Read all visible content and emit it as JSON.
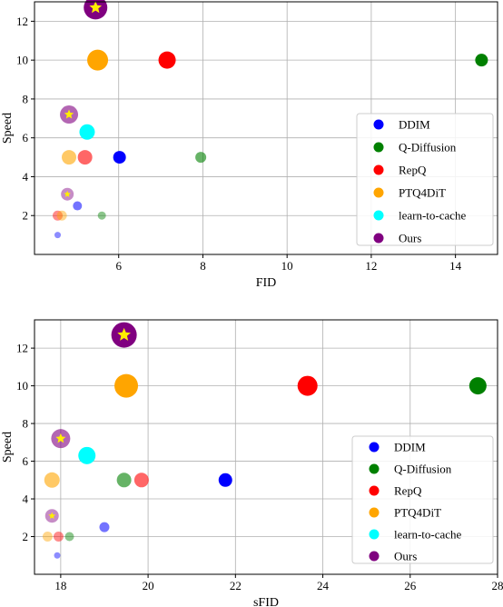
{
  "colors": {
    "DDIM": "#0000ff",
    "Q-Diffusion": "#008000",
    "RepQ": "#ff0000",
    "PTQ4DiT": "#ffa500",
    "learn-to-cache": "#00ffff",
    "Ours": "#800080",
    "star": "#ffee00"
  },
  "chart_data": [
    {
      "type": "scatter",
      "xlabel": "FID",
      "ylabel": "Speed",
      "xlim": [
        4.0,
        15.0
      ],
      "ylim": [
        0.0,
        13.0
      ],
      "xticks": [
        6,
        8,
        10,
        12,
        14
      ],
      "yticks": [
        2,
        4,
        6,
        8,
        10,
        12
      ],
      "grid": true,
      "legend_position": "lower-right",
      "series": [
        {
          "name": "DDIM",
          "points": [
            {
              "x": 6.02,
              "y": 5.0,
              "size": 14,
              "alpha": 1.0
            },
            {
              "x": 5.02,
              "y": 2.5,
              "size": 10,
              "alpha": 0.55
            },
            {
              "x": 4.55,
              "y": 1.0,
              "size": 7,
              "alpha": 0.45
            }
          ]
        },
        {
          "name": "Q-Diffusion",
          "points": [
            {
              "x": 14.62,
              "y": 10.0,
              "size": 14,
              "alpha": 1.0
            },
            {
              "x": 7.95,
              "y": 5.0,
              "size": 12,
              "alpha": 0.6
            },
            {
              "x": 5.6,
              "y": 2.0,
              "size": 9,
              "alpha": 0.45
            }
          ]
        },
        {
          "name": "RepQ",
          "points": [
            {
              "x": 7.15,
              "y": 10.0,
              "size": 19,
              "alpha": 1.0
            },
            {
              "x": 5.2,
              "y": 5.0,
              "size": 16,
              "alpha": 0.6
            },
            {
              "x": 4.55,
              "y": 2.0,
              "size": 11,
              "alpha": 0.45
            }
          ]
        },
        {
          "name": "PTQ4DiT",
          "points": [
            {
              "x": 5.5,
              "y": 10.0,
              "size": 23,
              "alpha": 1.0
            },
            {
              "x": 4.82,
              "y": 5.0,
              "size": 16,
              "alpha": 0.6
            },
            {
              "x": 4.65,
              "y": 2.0,
              "size": 11,
              "alpha": 0.45
            }
          ]
        },
        {
          "name": "learn-to-cache",
          "points": [
            {
              "x": 5.25,
              "y": 6.3,
              "size": 17,
              "alpha": 1.0
            }
          ]
        },
        {
          "name": "Ours",
          "points": [
            {
              "x": 5.45,
              "y": 12.7,
              "size": 26,
              "alpha": 1.0,
              "star": true
            },
            {
              "x": 4.82,
              "y": 7.2,
              "size": 20,
              "alpha": 0.6,
              "star": true
            },
            {
              "x": 4.78,
              "y": 3.1,
              "size": 14,
              "alpha": 0.45,
              "star": true
            }
          ]
        }
      ]
    },
    {
      "type": "scatter",
      "xlabel": "sFID",
      "ylabel": "Speed",
      "xlim": [
        17.4,
        28.0
      ],
      "ylim": [
        0.0,
        13.5
      ],
      "xticks": [
        18,
        20,
        22,
        24,
        26,
        28
      ],
      "yticks": [
        2,
        4,
        6,
        8,
        10,
        12
      ],
      "grid": true,
      "legend_position": "lower-right",
      "series": [
        {
          "name": "DDIM",
          "points": [
            {
              "x": 21.77,
              "y": 5.0,
              "size": 15,
              "alpha": 1.0
            },
            {
              "x": 19.0,
              "y": 2.5,
              "size": 11,
              "alpha": 0.55
            },
            {
              "x": 17.92,
              "y": 1.0,
              "size": 7,
              "alpha": 0.45
            }
          ]
        },
        {
          "name": "Q-Diffusion",
          "points": [
            {
              "x": 27.55,
              "y": 10.0,
              "size": 19,
              "alpha": 1.0
            },
            {
              "x": 19.45,
              "y": 5.0,
              "size": 16,
              "alpha": 0.6
            },
            {
              "x": 18.2,
              "y": 2.0,
              "size": 10,
              "alpha": 0.45
            }
          ]
        },
        {
          "name": "RepQ",
          "points": [
            {
              "x": 23.65,
              "y": 10.0,
              "size": 22,
              "alpha": 1.0
            },
            {
              "x": 19.85,
              "y": 5.0,
              "size": 16,
              "alpha": 0.6
            },
            {
              "x": 17.95,
              "y": 2.0,
              "size": 11,
              "alpha": 0.45
            }
          ]
        },
        {
          "name": "PTQ4DiT",
          "points": [
            {
              "x": 19.5,
              "y": 10.0,
              "size": 26,
              "alpha": 1.0
            },
            {
              "x": 17.8,
              "y": 5.0,
              "size": 17,
              "alpha": 0.6
            },
            {
              "x": 17.7,
              "y": 2.0,
              "size": 11,
              "alpha": 0.45
            }
          ]
        },
        {
          "name": "learn-to-cache",
          "points": [
            {
              "x": 18.6,
              "y": 6.3,
              "size": 19,
              "alpha": 1.0
            }
          ]
        },
        {
          "name": "Ours",
          "points": [
            {
              "x": 19.45,
              "y": 12.7,
              "size": 28,
              "alpha": 1.0,
              "star": true
            },
            {
              "x": 18.0,
              "y": 7.2,
              "size": 21,
              "alpha": 0.6,
              "star": true
            },
            {
              "x": 17.8,
              "y": 3.1,
              "size": 15,
              "alpha": 0.45,
              "star": true
            }
          ]
        }
      ]
    }
  ]
}
